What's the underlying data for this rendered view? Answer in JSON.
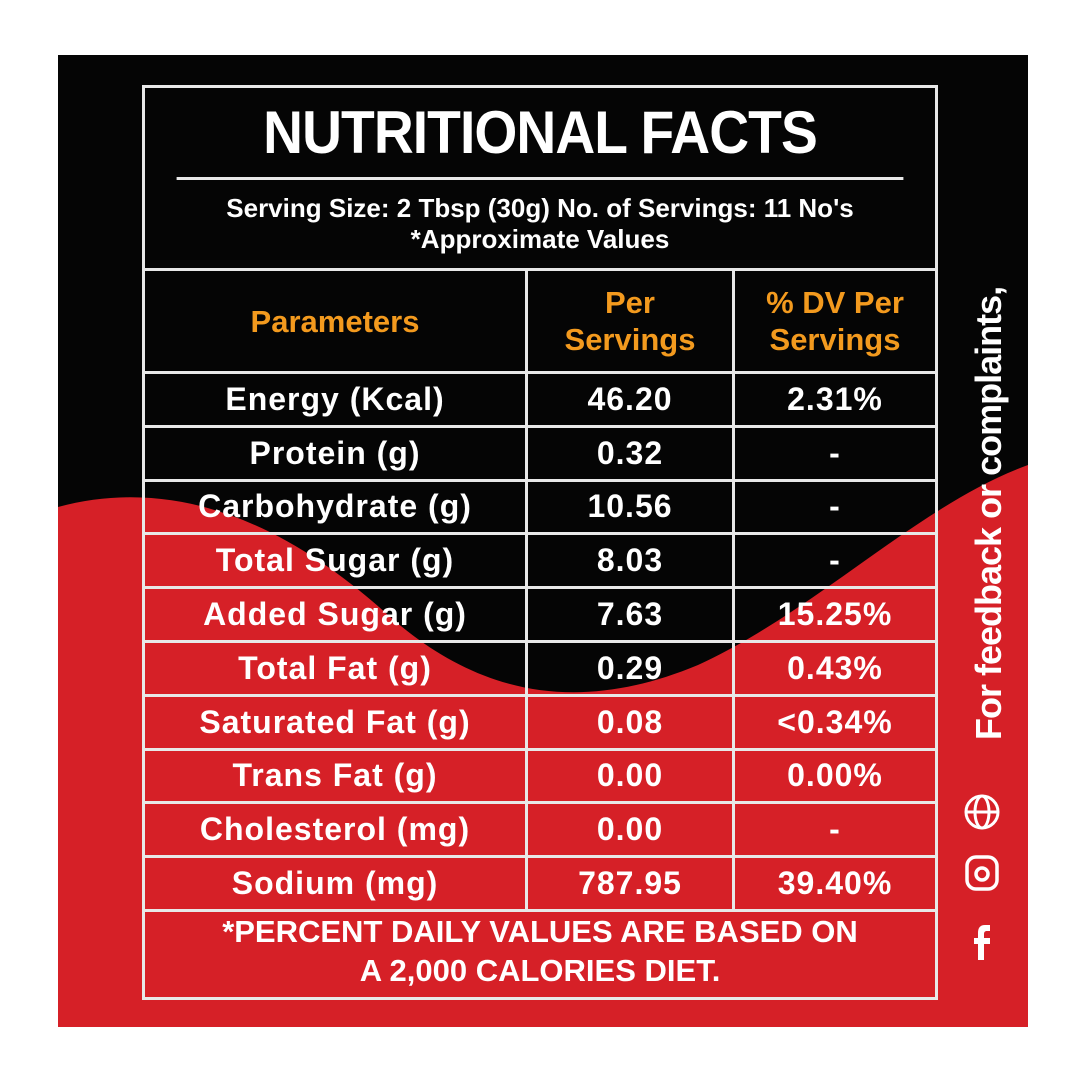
{
  "title": "NUTRITIONAL FACTS",
  "serving": {
    "line1": "Serving Size: 2 Tbsp (30g) No. of Servings: 11 No's",
    "line2": "*Approximate Values"
  },
  "headers": {
    "col1": "Parameters",
    "col2": "Per Servings",
    "col3": "% DV Per Servings"
  },
  "rows": [
    {
      "param": "Energy (Kcal)",
      "per": "46.20",
      "dv": "2.31%"
    },
    {
      "param": "Protein (g)",
      "per": "0.32",
      "dv": "-"
    },
    {
      "param": "Carbohydrate (g)",
      "per": "10.56",
      "dv": "-"
    },
    {
      "param": "Total Sugar (g)",
      "per": "8.03",
      "dv": "-"
    },
    {
      "param": "Added Sugar (g)",
      "per": "7.63",
      "dv": "15.25%"
    },
    {
      "param": "Total Fat (g)",
      "per": "0.29",
      "dv": "0.43%"
    },
    {
      "param": "Saturated Fat (g)",
      "per": "0.08",
      "dv": "<0.34%"
    },
    {
      "param": "Trans Fat (g)",
      "per": "0.00",
      "dv": "0.00%"
    },
    {
      "param": "Cholesterol (mg)",
      "per": "0.00",
      "dv": "-"
    },
    {
      "param": "Sodium (mg)",
      "per": "787.95",
      "dv": "39.40%"
    }
  ],
  "footer": {
    "line1": "*PERCENT DAILY VALUES ARE BASED ON",
    "line2": "A 2,000 CALORIES DIET."
  },
  "side_text": "For feedback or complaints,",
  "icons": [
    "globe-icon",
    "instagram-icon",
    "facebook-icon"
  ],
  "colors": {
    "black": "#050505",
    "red": "#d62027",
    "orange": "#f39a1e",
    "white": "#ffffff"
  }
}
